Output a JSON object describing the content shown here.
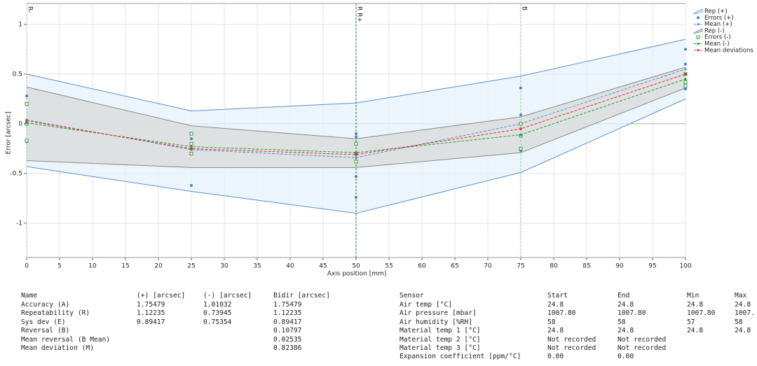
{
  "chart_data": {
    "type": "line",
    "x_label": "Axis position [mm]",
    "y_label": "Error [arcsec]",
    "xlim": [
      0,
      100
    ],
    "xticks": [
      0,
      5,
      10,
      15,
      20,
      25,
      30,
      35,
      40,
      45,
      50,
      55,
      60,
      65,
      70,
      75,
      80,
      85,
      90,
      95,
      100
    ],
    "ylim": [
      -1.345,
      1.21
    ],
    "yticks": [
      -1,
      -0.5,
      0,
      0.5,
      1
    ],
    "grid": true,
    "legend": "top-right",
    "x": [
      0,
      25,
      50,
      75,
      100
    ],
    "series": [
      {
        "name": "Rep (+)",
        "kind": "band",
        "color": "#5b8fd6",
        "fill": "#e6f1fb",
        "upper": [
          0.5,
          0.13,
          0.21,
          0.48,
          0.85
        ],
        "lower": [
          -0.43,
          -0.68,
          -0.9,
          -0.49,
          0.25
        ]
      },
      {
        "name": "Errors (+)",
        "kind": "points",
        "color": "#4a7fc1",
        "x": [
          0,
          0,
          25,
          25,
          25,
          50,
          50,
          50,
          50,
          75,
          75,
          75,
          100,
          100,
          100
        ],
        "values": [
          0.28,
          -0.18,
          -0.62,
          -0.15,
          -0.25,
          -0.1,
          -0.53,
          -0.74,
          -0.13,
          0.36,
          0.09,
          -0.27,
          0.75,
          0.6,
          0.35
        ]
      },
      {
        "name": "Mean (+)",
        "kind": "line",
        "color": "#5b8fd6",
        "values": [
          0.04,
          -0.26,
          -0.34,
          0.0,
          0.55
        ]
      },
      {
        "name": "Rep (-)",
        "kind": "band",
        "color": "#888888",
        "fill": "#d9d9d9",
        "upper": [
          0.37,
          -0.02,
          -0.15,
          0.07,
          0.57
        ],
        "lower": [
          -0.37,
          -0.44,
          -0.44,
          -0.29,
          0.36
        ]
      },
      {
        "name": "Errors (-)",
        "kind": "squares",
        "color": "#2e9b3c",
        "x": [
          0,
          0,
          0,
          25,
          25,
          25,
          50,
          50,
          50,
          75,
          75,
          75,
          100,
          100,
          100
        ],
        "values": [
          0.2,
          0.0,
          -0.17,
          -0.1,
          -0.2,
          -0.3,
          -0.2,
          -0.3,
          -0.38,
          0.0,
          -0.12,
          -0.25,
          0.5,
          0.42,
          0.38
        ]
      },
      {
        "name": "Mean (-)",
        "kind": "line",
        "color": "#2e9b3c",
        "values": [
          0.01,
          -0.23,
          -0.29,
          -0.11,
          0.45
        ]
      },
      {
        "name": "Mean deviations",
        "kind": "line",
        "color": "#e53030",
        "values": [
          0.03,
          -0.25,
          -0.31,
          -0.05,
          0.5
        ]
      }
    ],
    "markers": [
      {
        "x": 0,
        "label": "R-",
        "color": "#bbbbbb"
      },
      {
        "x": 50,
        "label": "R R+",
        "color": "#2f6e3a"
      },
      {
        "x": 75,
        "label": "B",
        "color": "#8ccf9a"
      }
    ]
  },
  "stats_table": {
    "headers": [
      "Name",
      "(+) [arcsec]",
      "(-) [arcsec]",
      "Bidir [arcsec]"
    ],
    "rows": [
      [
        "Accuracy  (A)",
        "1.75479",
        "1.01032",
        "1.75479"
      ],
      [
        "Repeatability (R)",
        "1.12235",
        "0.73945",
        "1.12235"
      ],
      [
        "Sys dev (E)",
        "0.89417",
        "0.75354",
        "0.89417"
      ],
      [
        "Reversal (B)",
        null,
        null,
        "0.10797"
      ],
      [
        "Mean reversal (B Mean)",
        null,
        null,
        "0.02535"
      ],
      [
        "Mean deviation (M)",
        null,
        null,
        "0.82386"
      ]
    ]
  },
  "sensor_table": {
    "headers": [
      "Sensor",
      "Start",
      "End",
      "Min",
      "Max"
    ],
    "rows": [
      [
        "Air temp [°C]",
        "24.8",
        "24.8",
        "24.8",
        "24.8"
      ],
      [
        "Air pressure [mbar]",
        "1007.80",
        "1007.80",
        "1007.80",
        "1007."
      ],
      [
        "Air humidity [%RH]",
        "58",
        "58",
        "57",
        "58"
      ],
      [
        "Material temp 1 [°C]",
        "24.8",
        "24.8",
        "24.8",
        "24.8"
      ],
      [
        "Material temp 2 [°C]",
        "Not recorded",
        "Not recorded",
        null,
        null
      ],
      [
        "Material temp 3 [°C]",
        "Not recorded",
        "Not recorded",
        null,
        null
      ],
      [
        "Expansion coefficient [ppm/°C]",
        "0.00",
        "0.00",
        null,
        null
      ]
    ]
  }
}
